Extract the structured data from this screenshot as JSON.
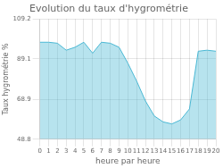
{
  "chart_data": {
    "type": "area",
    "title": "Evolution du taux d'hygrométrie",
    "xlabel": "heure par heure",
    "ylabel": "Taux hygrométrie %",
    "x": [
      0,
      1,
      2,
      3,
      4,
      5,
      6,
      7,
      8,
      9,
      10,
      11,
      12,
      13,
      14,
      15,
      16,
      17,
      18,
      19,
      20
    ],
    "values": [
      97.5,
      97.5,
      97.0,
      93.5,
      95.0,
      97.5,
      92.0,
      97.5,
      97.0,
      95.0,
      87.0,
      78.0,
      68.0,
      60.5,
      57.5,
      56.5,
      58.5,
      64.0,
      93.0,
      93.5,
      93.0
    ],
    "color": "#4ab8d4",
    "xlim": [
      0,
      20
    ],
    "xticks": [
      0,
      1,
      2,
      3,
      4,
      5,
      6,
      7,
      8,
      9,
      10,
      11,
      12,
      13,
      14,
      15,
      16,
      17,
      18,
      19,
      20
    ],
    "ylim": [
      48.8,
      109.2
    ],
    "yticks": [
      48.8,
      68.9,
      89.1,
      109.2
    ],
    "grid": true
  }
}
